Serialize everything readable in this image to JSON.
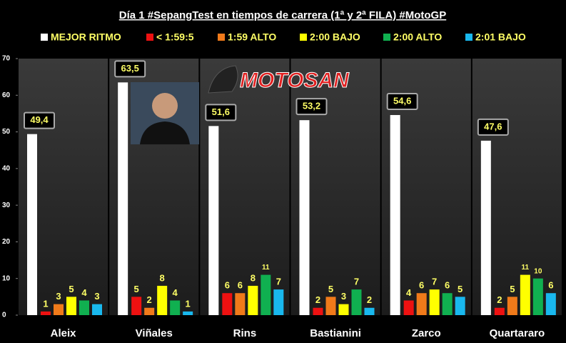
{
  "chart_data": {
    "type": "bar",
    "title": "Día 1 #SepangTest en tiempos de carrera (1ª y 2ª FILA) #MotoGP",
    "logo": "MOTOSAN",
    "categories": [
      "Aleix",
      "Viñales",
      "Rins",
      "Bastianini",
      "Zarco",
      "Quartararo"
    ],
    "series": [
      {
        "name": "MEJOR RITMO",
        "color": "#ffffff",
        "values": [
          49.4,
          63.5,
          51.6,
          53.2,
          54.6,
          47.6
        ],
        "value_labels": [
          "49,4",
          "63,5",
          "51,6",
          "53,2",
          "54,6",
          "47,6"
        ]
      },
      {
        "name": "< 1:59:5",
        "color": "#ee1111",
        "values": [
          1,
          5,
          6,
          2,
          4,
          2
        ]
      },
      {
        "name": "1:59 ALTO",
        "color": "#f07a1a",
        "values": [
          3,
          2,
          6,
          5,
          6,
          5
        ]
      },
      {
        "name": "2:00 BAJO",
        "color": "#ffff00",
        "values": [
          5,
          8,
          8,
          3,
          7,
          11
        ]
      },
      {
        "name": "2:00 ALTO",
        "color": "#10b050",
        "values": [
          4,
          4,
          11,
          7,
          6,
          10
        ]
      },
      {
        "name": "2:01 BAJO",
        "color": "#19b8ee",
        "values": [
          3,
          1,
          7,
          2,
          5,
          6
        ]
      }
    ],
    "ylim": [
      0,
      70
    ],
    "yticks": [
      0,
      10,
      20,
      30,
      40,
      50,
      60,
      70
    ],
    "legend": "top"
  }
}
